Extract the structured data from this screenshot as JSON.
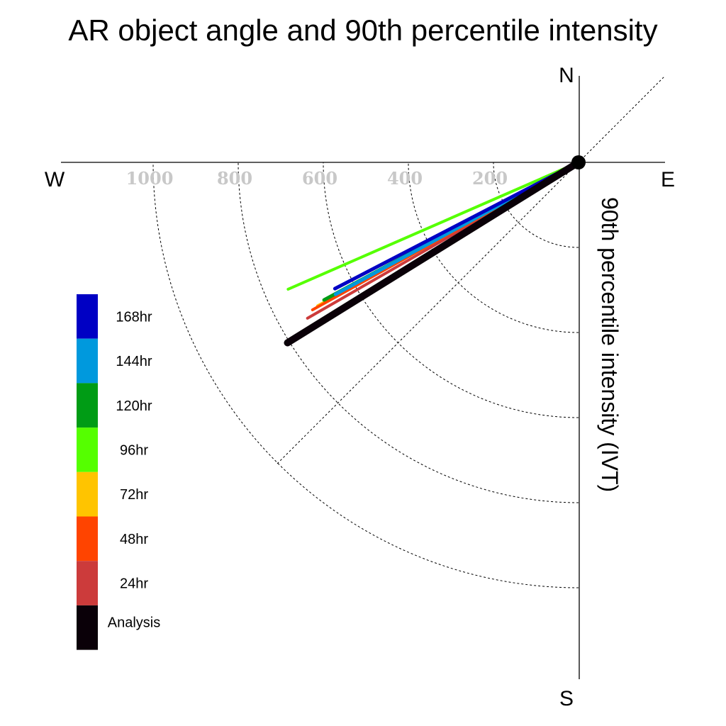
{
  "chart_data": {
    "type": "polar-vector",
    "title": "AR object angle and 90th percentile intensity",
    "radial_label": "90th percentile intensity (IVT)",
    "compass": {
      "north": "N",
      "east": "E",
      "south": "S",
      "west": "W"
    },
    "radial_ticks": [
      200,
      400,
      600,
      800,
      1000
    ],
    "radial_tick_labels": [
      "200",
      "400",
      "600",
      "800",
      "1000"
    ],
    "rmax": 1200,
    "grid": true,
    "legend_position": "left",
    "series": [
      {
        "name": "Analysis",
        "color": "#0a0008",
        "angle_deg_from_north": 238.2,
        "intensity": 805
      },
      {
        "name": "24hr",
        "color": "#cc3b3b",
        "angle_deg_from_north": 240.1,
        "intensity": 735
      },
      {
        "name": "48hr",
        "color": "#ff4400",
        "angle_deg_from_north": 241.0,
        "intensity": 715
      },
      {
        "name": "72hr",
        "color": "#ffc400",
        "angle_deg_from_north": 241.2,
        "intensity": 700
      },
      {
        "name": "96hr",
        "color": "#55ff00",
        "angle_deg_from_north": 246.4,
        "intensity": 745
      },
      {
        "name": "120hr",
        "color": "#009c15",
        "angle_deg_from_north": 241.6,
        "intensity": 680
      },
      {
        "name": "144hr",
        "color": "#0099dd",
        "angle_deg_from_north": 241.5,
        "intensity": 650
      },
      {
        "name": "168hr",
        "color": "#0000c4",
        "angle_deg_from_north": 242.6,
        "intensity": 645
      }
    ],
    "legend_order": [
      "168hr",
      "144hr",
      "120hr",
      "96hr",
      "72hr",
      "48hr",
      "24hr",
      "Analysis"
    ]
  }
}
